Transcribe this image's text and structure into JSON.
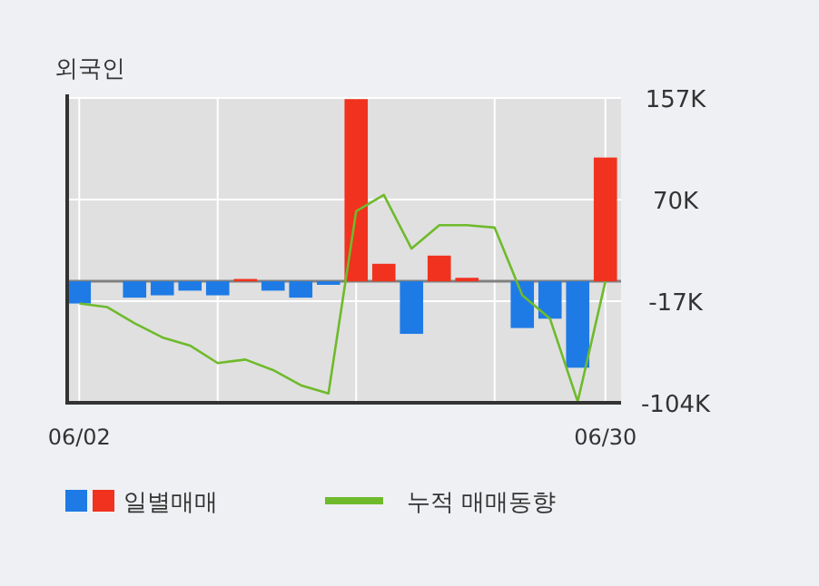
{
  "chart_data": {
    "type": "bar",
    "title": "외국인",
    "categories": [
      "06/02",
      null,
      null,
      null,
      null,
      null,
      null,
      null,
      null,
      null,
      null,
      null,
      null,
      null,
      null,
      null,
      null,
      null,
      null,
      "06/30"
    ],
    "ylim": [
      -104000,
      157000
    ],
    "yticks": [
      {
        "value": 157000,
        "label": "157K"
      },
      {
        "value": 70000,
        "label": "70K"
      },
      {
        "value": -17000,
        "label": "-17K"
      },
      {
        "value": -104000,
        "label": "-104K"
      }
    ],
    "grid": true,
    "legend": "bottom",
    "series": [
      {
        "name": "일별매매",
        "values": [
          -19000,
          null,
          -14000,
          -12000,
          -8000,
          -12000,
          2000,
          -8000,
          -14000,
          -3000,
          156000,
          15000,
          -45000,
          22000,
          3000,
          null,
          -40000,
          -32000,
          -74000,
          106000
        ],
        "colors": [
          "#1e7be6",
          "#1e7be6",
          "#1e7be6",
          "#1e7be6",
          "#1e7be6",
          "#1e7be6",
          "#f0321e",
          "#1e7be6",
          "#1e7be6",
          "#1e7be6",
          "#f0321e",
          "#f0321e",
          "#1e7be6",
          "#f0321e",
          "#f0321e",
          "#1e7be6",
          "#1e7be6",
          "#1e7be6",
          "#1e7be6",
          "#f0321e"
        ]
      },
      {
        "name": "누적 매매동향",
        "type": "line",
        "color": "#6fba2c",
        "values": [
          -19000,
          -22000,
          -36000,
          -48000,
          -55000,
          -70000,
          -67000,
          -76000,
          -89000,
          -96000,
          60000,
          74000,
          28000,
          48000,
          48000,
          46000,
          -12000,
          -32000,
          -103000,
          0
        ]
      }
    ]
  }
}
